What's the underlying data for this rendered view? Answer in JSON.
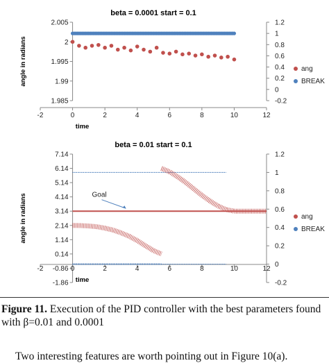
{
  "chart_data": [
    {
      "type": "scatter",
      "title": "beta = 0.0001 start = 0.1",
      "xlabel": "time",
      "ylabel": "angle in radians",
      "xlim": [
        -2,
        12
      ],
      "ylim": [
        1.985,
        2.005
      ],
      "y2lim": [
        -0.2,
        1.2
      ],
      "x_ticks": [
        "-2",
        "0",
        "2",
        "4",
        "6",
        "8",
        "10",
        "12"
      ],
      "y_ticks": [
        "1.985",
        "1.99",
        "1.995",
        "2",
        "2.005"
      ],
      "y2_ticks": [
        "-0.2",
        "0",
        "0.2",
        "0.4",
        "0.6",
        "0.8",
        "1",
        "1.2"
      ],
      "legend_position": "right",
      "series": [
        {
          "name": "ang",
          "axis": "left",
          "color": "#c0504d",
          "x": [
            0,
            0.4,
            0.8,
            1.2,
            1.6,
            2.0,
            2.4,
            2.8,
            3.2,
            3.6,
            4.0,
            4.4,
            4.8,
            5.2,
            5.6,
            6.0,
            6.4,
            6.8,
            7.2,
            7.6,
            8.0,
            8.4,
            8.8,
            9.2,
            9.6,
            10.0
          ],
          "y": [
            2.0,
            1.999,
            1.9985,
            1.999,
            1.9992,
            1.9985,
            1.999,
            1.998,
            1.9985,
            1.9978,
            1.9988,
            1.998,
            1.9975,
            1.9985,
            1.9972,
            1.997,
            1.9975,
            1.9968,
            1.997,
            1.9965,
            1.9968,
            1.9962,
            1.9965,
            1.996,
            1.9962,
            1.9955
          ]
        },
        {
          "name": "BREAK",
          "axis": "right",
          "color": "#4f81bd",
          "x": [
            0,
            10
          ],
          "y": [
            1,
            1
          ]
        }
      ]
    },
    {
      "type": "scatter",
      "title": "beta = 0.01  start = 0.1",
      "xlabel": "time",
      "ylabel": "angle in radians",
      "xlim": [
        -2,
        12
      ],
      "ylim": [
        -1.86,
        7.14
      ],
      "y2lim": [
        -0.2,
        1.2
      ],
      "x_ticks": [
        "-2",
        "0",
        "2",
        "4",
        "6",
        "8",
        "10",
        "12"
      ],
      "y_ticks": [
        "7.14",
        "6.14",
        "5.14",
        "4.14",
        "3.14",
        "2.14",
        "1.14",
        "0.14",
        "-0.86",
        "-1.86"
      ],
      "y2_ticks": [
        "1.2",
        "1",
        "0.8",
        "0.6",
        "0.4",
        "0.2",
        "0",
        "-0.2"
      ],
      "annotation": "Goal",
      "goal_y": 3.14,
      "legend_position": "right",
      "series": [
        {
          "name": "ang",
          "axis": "left",
          "color": "#c0504d",
          "segments": [
            {
              "x": [
                0,
                0.5,
                1.0,
                1.5,
                2.0,
                2.5,
                3.0,
                3.5,
                4.0,
                4.5,
                5.0,
                5.5
              ],
              "y": [
                2.14,
                2.13,
                2.1,
                2.05,
                1.95,
                1.82,
                1.62,
                1.38,
                1.08,
                0.72,
                0.38,
                0.14
              ]
            },
            {
              "x": [
                5.5,
                6.0,
                6.5,
                7.0,
                7.5,
                8.0,
                8.5,
                9.0,
                9.5,
                10.0,
                10.5,
                11.0,
                11.5,
                12.0
              ],
              "y": [
                6.14,
                5.9,
                5.55,
                5.15,
                4.7,
                4.25,
                3.85,
                3.5,
                3.25,
                3.14,
                3.14,
                3.14,
                3.14,
                3.14
              ]
            }
          ]
        },
        {
          "name": "BREAK",
          "axis": "right",
          "color": "#4f81bd",
          "segments": [
            {
              "x": [
                0,
                5.5
              ],
              "y": [
                1,
                1
              ]
            },
            {
              "x": [
                0,
                5.5
              ],
              "y": [
                0,
                0
              ]
            },
            {
              "x": [
                5.5,
                9.5
              ],
              "y": [
                1,
                1
              ]
            },
            {
              "x": [
                5.5,
                9.5
              ],
              "y": [
                0,
                0
              ]
            }
          ]
        }
      ]
    }
  ],
  "caption": {
    "label": "Figure 11.",
    "text": " Execution of the PID controller with the best parameters found with β=0.01 and 0.0001"
  },
  "body_text": "Two interesting features are worth pointing out in Figure 10(a)."
}
